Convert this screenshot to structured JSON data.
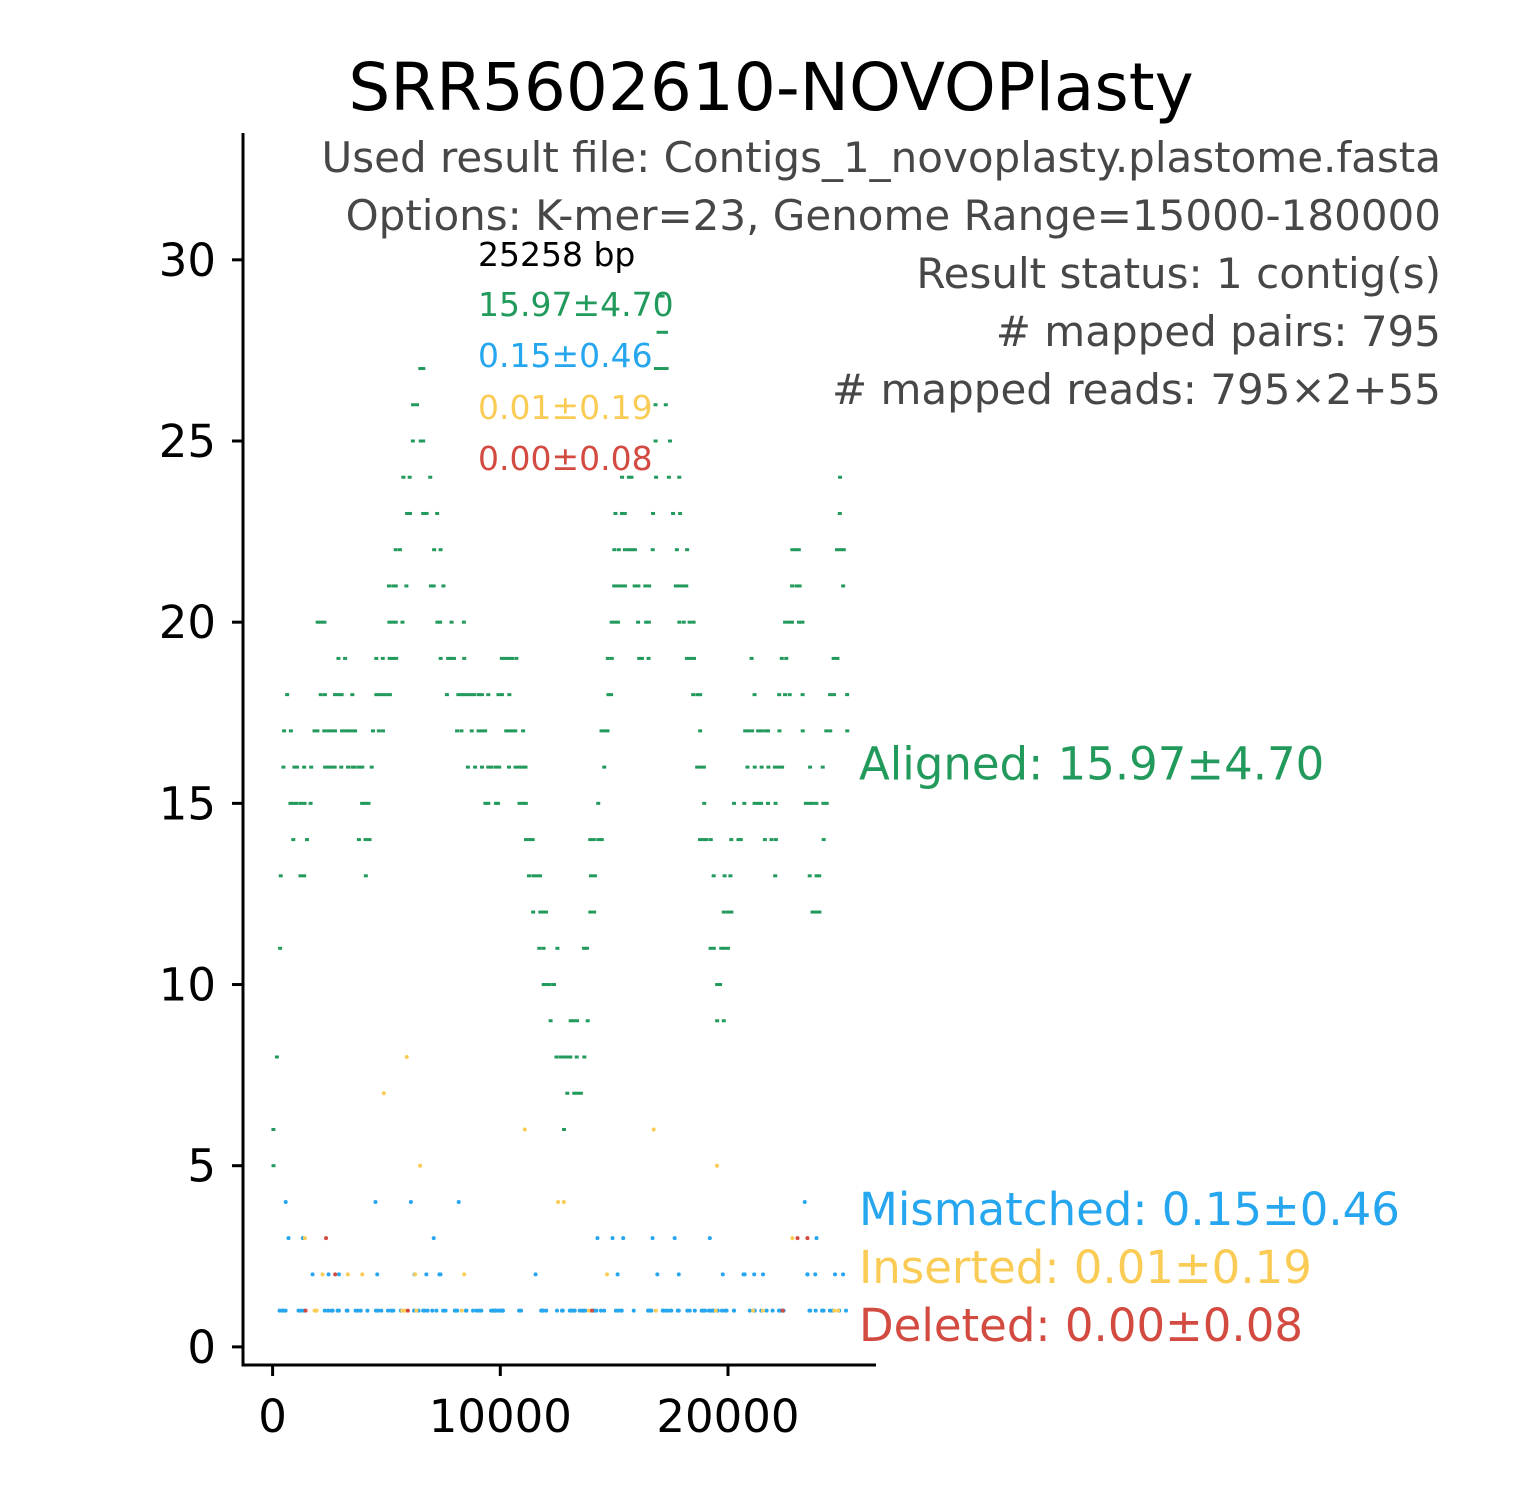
{
  "colors": {
    "aligned": "#229A5C",
    "mismatched": "#26A6EE",
    "inserted": "#FACC55",
    "deleted": "#D24A40",
    "axis": "#000000",
    "info": "#474747",
    "background": "#ffffff"
  },
  "chart_data": {
    "type": "scatter",
    "title": "SRR5602610-NOVOPlasty",
    "xlabel": "",
    "ylabel": "",
    "xlim": [
      -1300,
      26500
    ],
    "ylim": [
      -0.5,
      33.5
    ],
    "xticks": [
      0,
      10000,
      20000
    ],
    "xtick_labels": [
      "0",
      "10000",
      "20000"
    ],
    "yticks": [
      0,
      5,
      10,
      15,
      20,
      25,
      30
    ],
    "ytick_labels": [
      "0",
      "5",
      "10",
      "15",
      "20",
      "25",
      "30"
    ],
    "grid": false,
    "info_lines": [
      "Used result file: Contigs_1_novoplasty.plastome.fasta",
      "Options: K-mer=23, Genome Range=15000-180000",
      "Result status: 1 contig(s)",
      "# mapped pairs: 795",
      "# mapped reads: 795×2+55"
    ],
    "legend": {
      "placement": "top-center",
      "length_label": "25258 bp",
      "entries": [
        {
          "series": "aligned",
          "text": "15.97±4.70"
        },
        {
          "series": "mismatched",
          "text": "0.15±0.46"
        },
        {
          "series": "inserted",
          "text": "0.01±0.19"
        },
        {
          "series": "deleted",
          "text": "0.00±0.08"
        }
      ]
    },
    "side_labels": [
      {
        "series": "aligned",
        "text": "Aligned: 15.97±4.70",
        "y": 16.1
      },
      {
        "series": "mismatched",
        "text": "Mismatched: 0.15±0.46",
        "y": 3.8
      },
      {
        "series": "inserted",
        "text": "Inserted: 0.01±0.19",
        "y": 2.2
      },
      {
        "series": "deleted",
        "text": "Deleted: 0.00±0.08",
        "y": 0.6
      }
    ],
    "series": [
      {
        "name": "Aligned",
        "key": "aligned",
        "x_range": [
          0,
          25258
        ],
        "step": 150,
        "profile_x": [
          0,
          500,
          1000,
          1500,
          2000,
          2500,
          3000,
          3500,
          4000,
          4500,
          5000,
          5500,
          6000,
          6500,
          7000,
          7500,
          8000,
          8500,
          9000,
          9500,
          10000,
          10500,
          11000,
          11500,
          12000,
          12500,
          13000,
          13500,
          14000,
          14500,
          15000,
          15500,
          16000,
          16500,
          17000,
          17500,
          18000,
          18500,
          19000,
          19500,
          20000,
          20500,
          21000,
          21500,
          22000,
          22500,
          23000,
          23500,
          24000,
          24500,
          25000,
          25258
        ],
        "profile_y": [
          5,
          18,
          15,
          14,
          19,
          17,
          18,
          16,
          14,
          17,
          19,
          21,
          24,
          26,
          22,
          20,
          19,
          18,
          17,
          16,
          17,
          18,
          16,
          13,
          11,
          9,
          7,
          8,
          13,
          16,
          21,
          23,
          21,
          20,
          29,
          24,
          21,
          18,
          14,
          10,
          12,
          15,
          17,
          16,
          14,
          19,
          22,
          14,
          13,
          18,
          24,
          16
        ],
        "spread": 1.8
      },
      {
        "name": "Mismatched",
        "key": "mismatched",
        "x_range": [
          0,
          25258
        ],
        "levels": [
          1,
          2,
          3,
          4,
          5
        ],
        "weights": [
          0.82,
          0.12,
          0.04,
          0.015,
          0.005
        ],
        "count": 170
      },
      {
        "name": "Inserted",
        "key": "inserted",
        "x_range": [
          0,
          25258
        ],
        "levels": [
          1,
          2,
          3,
          4,
          5,
          6,
          7,
          8,
          16
        ],
        "weights": [
          0.45,
          0.2,
          0.12,
          0.06,
          0.05,
          0.03,
          0.03,
          0.03,
          0.03
        ],
        "count": 30
      },
      {
        "name": "Deleted",
        "key": "deleted",
        "x_range": [
          0,
          25258
        ],
        "levels": [
          1,
          2,
          3
        ],
        "weights": [
          0.7,
          0.2,
          0.1
        ],
        "count": 8
      }
    ]
  }
}
